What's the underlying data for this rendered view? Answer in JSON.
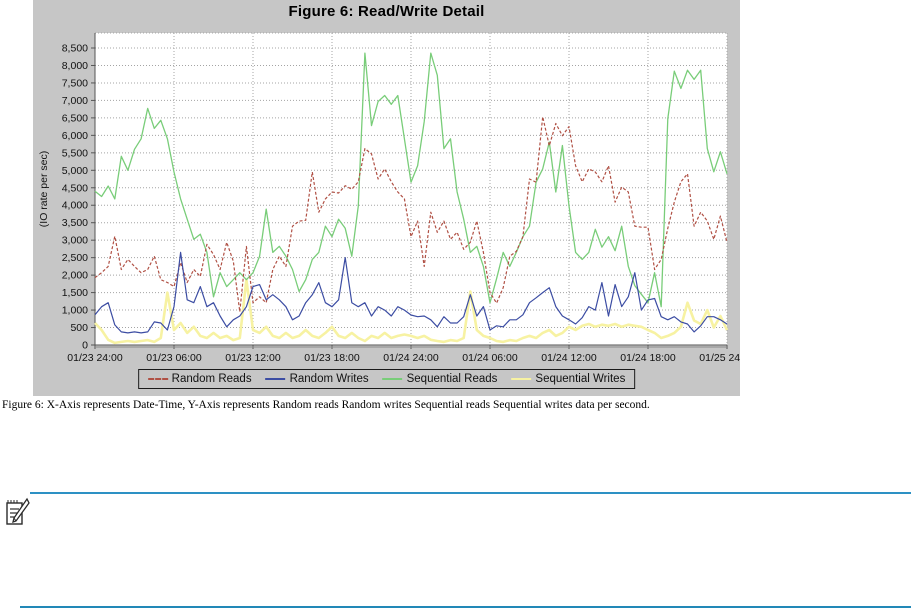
{
  "page": {
    "caption": "Figure 6: X-Axis represents Date-Time, Y-Axis represents Random reads Random writes Sequential reads Sequential writes data per second."
  },
  "chart": {
    "panel_background": "#c6c6c6",
    "plot_background": "#ffffff",
    "grid_color": "#a4a4a4",
    "axis_color": "#555555",
    "text_color": "#111111"
  },
  "note": {
    "icon": "note-icon",
    "rule_top_color": "#2d91c4",
    "rule_bottom_color": "#2288b7"
  },
  "chart_data": {
    "type": "line",
    "title": "Figure 6: Read/Write Detail",
    "xlabel": "Date-Time",
    "ylabel": "(IO rate per sec)",
    "ylim": [
      0,
      8500
    ],
    "ytick_step": 500,
    "ytick_labels": [
      "0",
      "500",
      "1,000",
      "1,500",
      "2,000",
      "2,500",
      "3,000",
      "3,500",
      "4,000",
      "4,500",
      "5,000",
      "5,500",
      "6,000",
      "6,500",
      "7,000",
      "7,500",
      "8,000",
      "8,500"
    ],
    "xtick_labels": [
      "01/23 24:00",
      "01/23 06:00",
      "01/23 12:00",
      "01/23 18:00",
      "01/24 24:00",
      "01/24 06:00",
      "01/24 12:00",
      "01/24 18:00",
      "01/25 24:00"
    ],
    "xtick_hours": [
      0,
      6,
      12,
      18,
      24,
      30,
      36,
      42,
      48
    ],
    "x_hours_total": 48,
    "x_hours_step": 0.5,
    "grid": "dotted",
    "legend_position": "bottom",
    "series": [
      {
        "name": "Random Reads",
        "color": "#b05044",
        "dash": "3,2",
        "width": 1.2,
        "z": 2,
        "values": [
          1930,
          2070,
          2250,
          3110,
          2160,
          2450,
          2250,
          2070,
          2160,
          2540,
          1870,
          1790,
          1670,
          2360,
          1790,
          2160,
          1960,
          2880,
          2590,
          2160,
          2940,
          2400,
          950,
          2820,
          1210,
          1380,
          1210,
          2160,
          2540,
          2250,
          3400,
          3545,
          3570,
          4950,
          3800,
          4180,
          4380,
          4350,
          4560,
          4460,
          4670,
          5620,
          5470,
          4750,
          5040,
          4670,
          4380,
          4180,
          3100,
          3545,
          2250,
          3800,
          3225,
          3545,
          3025,
          3225,
          2740,
          2940,
          3550,
          2650,
          1500,
          1200,
          1640,
          2540,
          2680,
          3100,
          4750,
          4660,
          6530,
          5700,
          6340,
          5990,
          6250,
          5130,
          4670,
          5040,
          4950,
          4670,
          5130,
          4090,
          4520,
          4380,
          3400,
          3370,
          3370,
          2160,
          2450,
          3340,
          4090,
          4670,
          4900,
          3400,
          3800,
          3550,
          3025,
          3690,
          2940
        ]
      },
      {
        "name": "Random Writes",
        "color": "#3c4da3",
        "dash": "",
        "width": 1.2,
        "z": 3,
        "values": [
          865,
          1095,
          1210,
          575,
          375,
          345,
          375,
          345,
          375,
          660,
          630,
          430,
          1095,
          2650,
          1295,
          1210,
          1670,
          1095,
          1210,
          830,
          520,
          720,
          830,
          1095,
          1670,
          1730,
          1295,
          1440,
          1295,
          1095,
          720,
          830,
          1210,
          1440,
          1785,
          1210,
          1095,
          1295,
          2500,
          1210,
          1095,
          1210,
          830,
          1095,
          1000,
          830,
          1095,
          1000,
          860,
          810,
          830,
          720,
          520,
          810,
          630,
          630,
          810,
          1440,
          830,
          1100,
          430,
          550,
          520,
          720,
          720,
          865,
          1210,
          1350,
          1500,
          1640,
          1100,
          830,
          720,
          600,
          780,
          1100,
          1000,
          1785,
          830,
          1730,
          1100,
          1380,
          2070,
          1000,
          1290,
          1330,
          810,
          720,
          810,
          660,
          600,
          375,
          550,
          810,
          810,
          720,
          600
        ]
      },
      {
        "name": "Sequential Reads",
        "color": "#79cd79",
        "dash": "",
        "width": 1.3,
        "z": 1,
        "values": [
          4400,
          4250,
          4550,
          4180,
          5400,
          5000,
          5600,
          5900,
          6770,
          6200,
          6430,
          5900,
          4950,
          4180,
          3600,
          3025,
          3170,
          2650,
          1380,
          2070,
          1670,
          1870,
          2070,
          1870,
          2070,
          2540,
          3890,
          2650,
          2825,
          2540,
          2160,
          1530,
          1870,
          2450,
          2650,
          3400,
          3100,
          3600,
          3340,
          2540,
          3980,
          8355,
          6280,
          6970,
          7140,
          6890,
          7140,
          5900,
          4660,
          5130,
          6390,
          8355,
          7720,
          5620,
          5900,
          4380,
          3600,
          2650,
          2825,
          2250,
          1210,
          1900,
          2650,
          2250,
          2650,
          3100,
          3400,
          4660,
          5040,
          5810,
          4380,
          5710,
          3980,
          2650,
          2450,
          2650,
          3310,
          2800,
          3100,
          2700,
          3400,
          2250,
          1700,
          1450,
          1210,
          2070,
          1095,
          6480,
          7835,
          7345,
          7864,
          7600,
          7864,
          5620,
          4956,
          5530,
          4900
        ]
      },
      {
        "name": "Sequential Writes",
        "color": "#f7f2a2",
        "dash": "",
        "width": 2.6,
        "z": 0,
        "values": [
          630,
          430,
          150,
          60,
          90,
          115,
          90,
          115,
          140,
          90,
          200,
          1500,
          430,
          630,
          345,
          520,
          260,
          200,
          345,
          200,
          260,
          140,
          200,
          1870,
          430,
          345,
          520,
          260,
          200,
          345,
          200,
          260,
          430,
          260,
          200,
          345,
          520,
          260,
          200,
          345,
          200,
          115,
          260,
          200,
          345,
          200,
          260,
          300,
          260,
          200,
          260,
          150,
          115,
          90,
          140,
          115,
          200,
          1530,
          430,
          260,
          200,
          115,
          90,
          140,
          115,
          200,
          260,
          200,
          345,
          430,
          260,
          345,
          520,
          430,
          550,
          600,
          520,
          580,
          550,
          600,
          520,
          580,
          550,
          520,
          430,
          345,
          200,
          260,
          345,
          520,
          1210,
          700,
          600,
          1000,
          500,
          830,
          430
        ]
      }
    ]
  }
}
